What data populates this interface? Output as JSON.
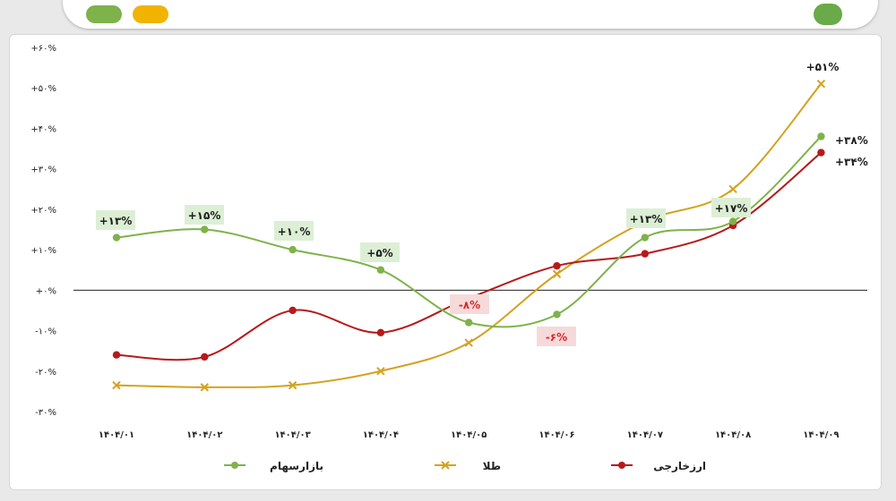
{
  "colors": {
    "stock": "#7fb24a",
    "gold": "#d4a21f",
    "fx": "#b8191b",
    "label_box": "#dcefd5",
    "label_box_neg": "#f6dada",
    "label_pos": "#1e1e1e",
    "label_neg": "#d42a2a",
    "tick_neg": "#d42a2a",
    "zero_line": "#222222"
  },
  "chart_data": {
    "type": "line",
    "categories": [
      "۱۴۰۴/۰۱",
      "۱۴۰۴/۰۲",
      "۱۴۰۴/۰۳",
      "۱۴۰۴/۰۴",
      "۱۴۰۴/۰۵",
      "۱۴۰۴/۰۶",
      "۱۴۰۴/۰۷",
      "۱۴۰۴/۰۸",
      "۱۴۰۴/۰۹"
    ],
    "ylim": [
      -30,
      60
    ],
    "yticks": [
      {
        "value": 60,
        "label": "+۶۰%"
      },
      {
        "value": 50,
        "label": "+۵۰%"
      },
      {
        "value": 40,
        "label": "+۴۰%"
      },
      {
        "value": 30,
        "label": "+۳۰%"
      },
      {
        "value": 20,
        "label": "+۲۰%"
      },
      {
        "value": 10,
        "label": "+۱۰%"
      },
      {
        "value": 0,
        "label": "+۰%"
      },
      {
        "value": -10,
        "label": "-۱۰%"
      },
      {
        "value": -20,
        "label": "-۲۰%"
      },
      {
        "value": -30,
        "label": "-۳۰%"
      }
    ],
    "series": [
      {
        "key": "stock",
        "name": "بازارسهام",
        "color": "#7fb24a",
        "marker": "circle",
        "values": [
          13,
          15,
          10,
          5,
          -8,
          -6,
          13,
          17,
          38
        ],
        "point_labels": [
          "+۱۳%",
          "+۱۵%",
          "+۱۰%",
          "+۵%",
          "-۸%",
          "-۶%",
          "+۱۳%",
          "+۱۷%",
          "+۳۸%"
        ]
      },
      {
        "key": "gold",
        "name": "طلا",
        "color": "#d4a21f",
        "marker": "x",
        "values": [
          -23.5,
          -24,
          -23.5,
          -20,
          -13,
          4,
          17,
          25,
          51
        ],
        "point_labels": [
          "",
          "",
          "",
          "",
          "",
          "",
          "",
          "",
          "+۵۱%"
        ]
      },
      {
        "key": "fx",
        "name": "ارزخارجی",
        "color": "#b8191b",
        "marker": "circle",
        "values": [
          -16,
          -16.5,
          -5,
          -10.5,
          -2,
          6,
          9,
          16,
          34
        ],
        "point_labels": [
          "",
          "",
          "",
          "",
          "",
          "",
          "",
          "",
          "+۳۴%"
        ]
      }
    ],
    "grid": false,
    "legend_placement": "bottom"
  }
}
